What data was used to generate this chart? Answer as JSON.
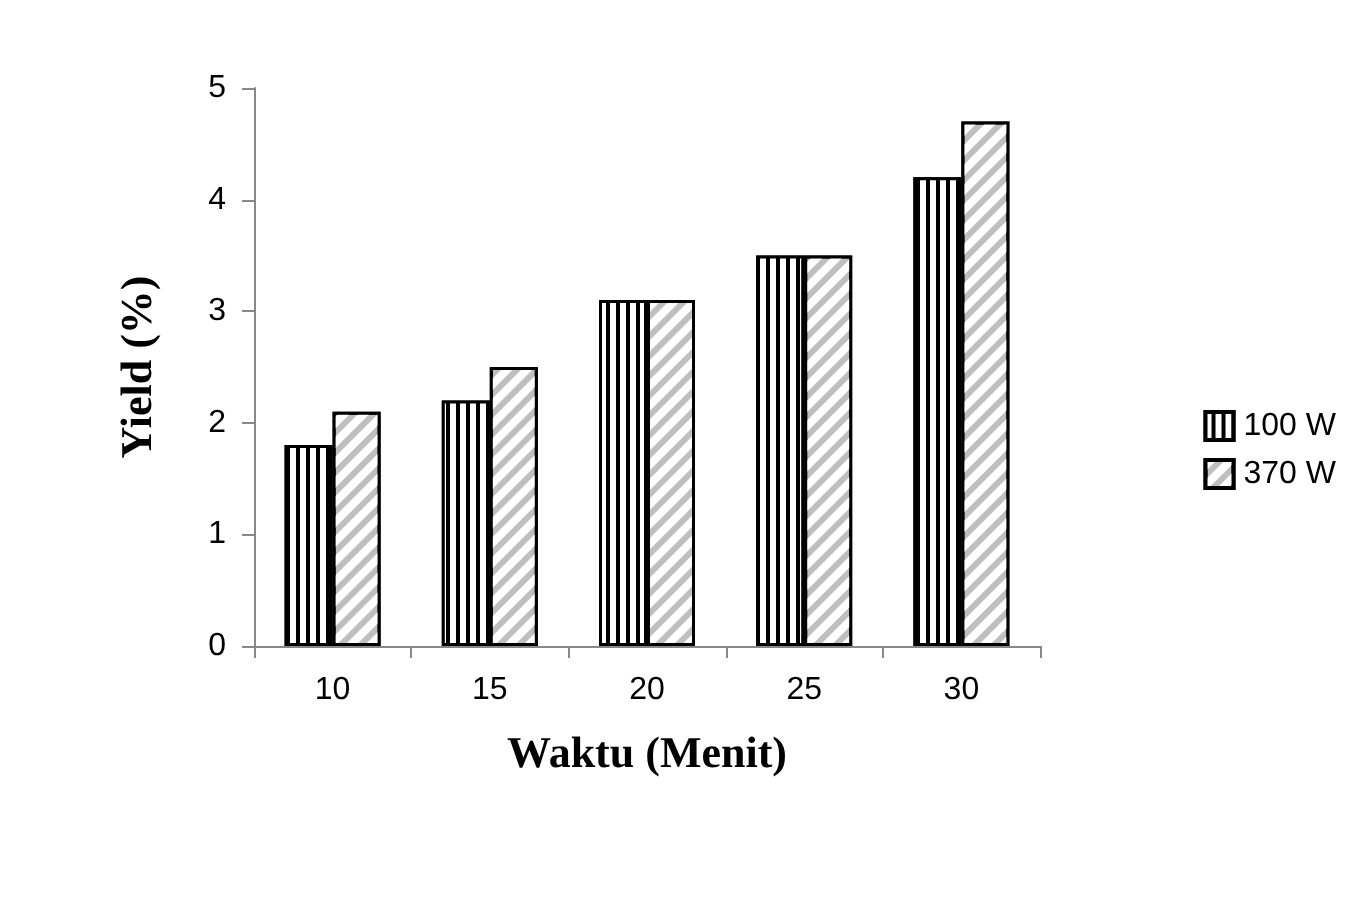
{
  "chart_data": {
    "type": "bar",
    "xlabel": "Waktu (Menit)",
    "ylabel": "Yield (%)",
    "categories": [
      "10",
      "15",
      "20",
      "25",
      "30"
    ],
    "series": [
      {
        "name": "100 W",
        "color": "#000000",
        "values": [
          1.8,
          2.2,
          3.1,
          3.5,
          4.2
        ]
      },
      {
        "name": "370 W",
        "color": "#bfbfbf",
        "values": [
          2.1,
          2.5,
          3.1,
          3.5,
          4.7
        ]
      }
    ],
    "ylim": [
      0,
      5
    ],
    "yticks": [
      0,
      1,
      2,
      3,
      4,
      5
    ],
    "grid": false,
    "legend": "right"
  }
}
